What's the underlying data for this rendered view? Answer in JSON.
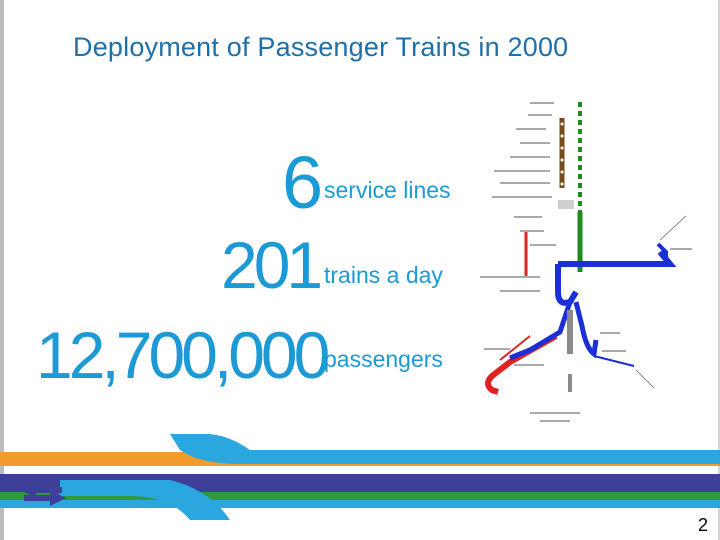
{
  "slide": {
    "title": "Deployment of Passenger Trains in 2000",
    "stats": [
      {
        "number": "6",
        "label": "service lines"
      },
      {
        "number": "201",
        "label": "trains a day"
      },
      {
        "number": "12,700,000",
        "label": "passengers"
      }
    ],
    "page_number": "2"
  },
  "colors": {
    "title": "#1f6fa8",
    "stat": "#1b9ad6",
    "map_blue": "#1a2fd6",
    "map_green": "#1f8a1f",
    "map_red": "#e02222",
    "map_brown": "#7a4a1c",
    "map_gray": "#8a8a8a",
    "stripe_blue": "#3d3f98",
    "stripe_orange": "#f39c2d",
    "stripe_green": "#2e9b3a",
    "stripe_light_blue": "#2aa7de"
  },
  "icons": {
    "logo": "railway-double-arrow-logo"
  }
}
